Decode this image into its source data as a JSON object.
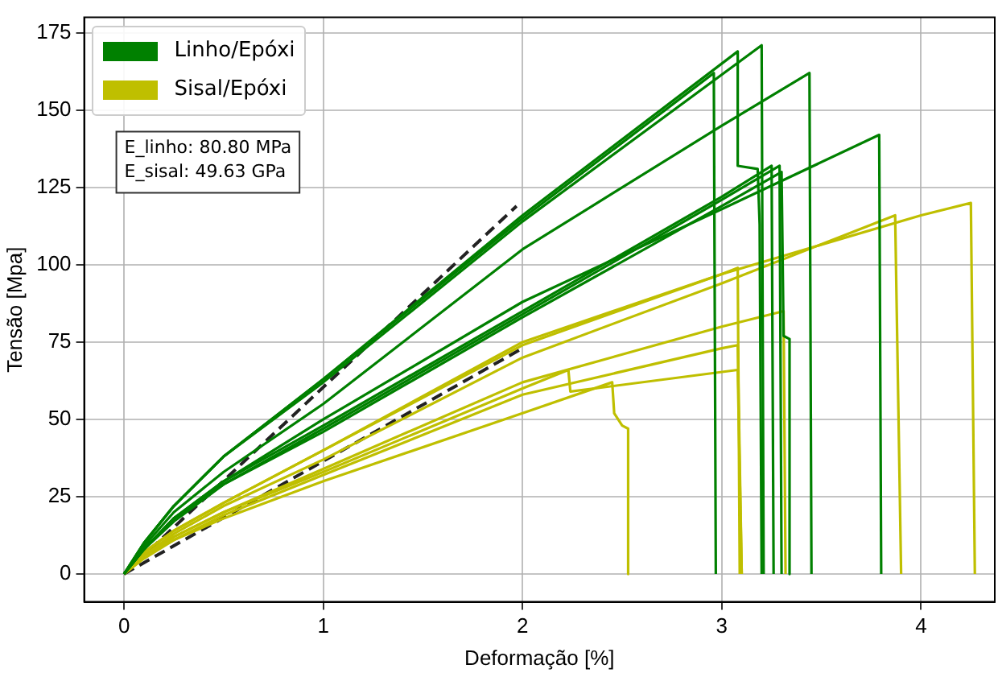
{
  "chart_data": {
    "type": "line",
    "xlabel": "Deformação [%]",
    "ylabel": "Tensão [Mpa]",
    "xlim": [
      -0.2,
      4.37
    ],
    "ylim": [
      -9,
      180
    ],
    "xticks": [
      0,
      1,
      2,
      3,
      4
    ],
    "yticks": [
      0,
      25,
      50,
      75,
      100,
      125,
      150,
      175
    ],
    "grid": true,
    "legend": "top left",
    "marker": "none",
    "line_style": "solid",
    "annotations": [
      "E_linho: 80.80 MPa",
      "E_sisal: 49.63 GPa"
    ],
    "series": [
      {
        "name": "Linho/Epóxi",
        "color": "#008000",
        "x": [
          0,
          0.1,
          0.25,
          0.5,
          1,
          2,
          2.96,
          2.97
        ],
        "values": [
          0,
          10,
          22,
          38,
          63,
          115,
          162,
          0
        ]
      },
      {
        "color": "#008000",
        "x": [
          0,
          0.1,
          0.25,
          0.5,
          1,
          2,
          3.08,
          3.08,
          3.18,
          3.19,
          3.2
        ],
        "values": [
          0,
          10,
          22,
          38,
          63,
          116,
          169,
          132,
          131,
          113,
          0
        ]
      },
      {
        "color": "#008000",
        "x": [
          0,
          0.1,
          0.25,
          0.5,
          1,
          2,
          3.2,
          3.21
        ],
        "values": [
          0,
          10,
          22,
          38,
          62,
          114,
          171,
          0
        ]
      },
      {
        "color": "#008000",
        "x": [
          0,
          0.1,
          0.25,
          0.5,
          1,
          2,
          3,
          3.44,
          3.45
        ],
        "values": [
          0,
          9,
          20,
          33,
          55,
          105,
          145,
          162,
          0
        ]
      },
      {
        "color": "#008000",
        "x": [
          0,
          0.1,
          0.25,
          0.5,
          1,
          2,
          3,
          3.79,
          3.8
        ],
        "values": [
          0,
          8,
          18,
          30,
          50,
          88,
          118,
          142,
          0
        ]
      },
      {
        "color": "#008000",
        "x": [
          0,
          0.1,
          0.25,
          0.5,
          1,
          2,
          3,
          3.25,
          3.26
        ],
        "values": [
          0,
          8,
          18,
          30,
          48,
          85,
          122,
          132,
          0
        ]
      },
      {
        "color": "#008000",
        "x": [
          0,
          0.1,
          0.25,
          0.5,
          1,
          2,
          3,
          3.29,
          3.3
        ],
        "values": [
          0,
          8,
          18,
          29,
          47,
          84,
          121,
          132,
          0
        ]
      },
      {
        "color": "#008000",
        "x": [
          0,
          0.1,
          0.25,
          0.5,
          1,
          2,
          3,
          3.3,
          3.31,
          3.34,
          3.34
        ],
        "values": [
          0,
          8,
          17,
          29,
          46,
          83,
          119,
          130,
          77,
          76,
          0
        ]
      },
      {
        "name": "Sisal/Epóxi",
        "color": "#bfbf00",
        "x": [
          0,
          0.1,
          0.25,
          0.5,
          1,
          2,
          3,
          3.08,
          3.09
        ],
        "values": [
          0,
          7,
          14,
          23,
          40,
          74,
          97,
          99,
          0
        ]
      },
      {
        "color": "#bfbf00",
        "x": [
          0,
          0.1,
          0.25,
          0.5,
          1,
          2,
          3,
          3.87,
          3.9
        ],
        "values": [
          0,
          6,
          13,
          22,
          37,
          70,
          94,
          116,
          0
        ]
      },
      {
        "color": "#bfbf00",
        "x": [
          0,
          0.1,
          0.25,
          0.5,
          1,
          2,
          3,
          4,
          4.25,
          4.27
        ],
        "values": [
          0,
          7,
          14,
          23,
          40,
          75,
          97,
          116,
          120,
          0
        ]
      },
      {
        "color": "#bfbf00",
        "x": [
          0,
          0.1,
          0.25,
          0.5,
          1,
          2,
          3,
          3.31,
          3.32
        ],
        "values": [
          0,
          6,
          12,
          20,
          34,
          62,
          80,
          85,
          0
        ]
      },
      {
        "color": "#bfbf00",
        "x": [
          0,
          0.1,
          0.25,
          0.5,
          1,
          2,
          3,
          3.08,
          3.1
        ],
        "values": [
          0,
          6,
          11,
          19,
          32,
          58,
          73,
          74,
          0
        ]
      },
      {
        "color": "#bfbf00",
        "x": [
          0,
          0.1,
          0.25,
          0.5,
          1,
          2,
          2.23,
          2.24,
          3.08,
          3.1
        ],
        "values": [
          0,
          6,
          12,
          20,
          33,
          60,
          66,
          59,
          66,
          0
        ]
      },
      {
        "color": "#bfbf00",
        "x": [
          0,
          0.1,
          0.25,
          0.5,
          1,
          2,
          2.45,
          2.46,
          2.5,
          2.53,
          2.53
        ],
        "values": [
          0,
          5,
          11,
          18,
          30,
          52,
          62,
          52,
          48,
          47,
          0
        ]
      },
      {
        "color": "#222222",
        "line_style": "dashed",
        "x": [
          0,
          1.97
        ],
        "values": [
          0,
          119
        ]
      },
      {
        "color": "#222222",
        "line_style": "dashed",
        "x": [
          0,
          2
        ],
        "values": [
          0,
          73
        ]
      }
    ]
  }
}
